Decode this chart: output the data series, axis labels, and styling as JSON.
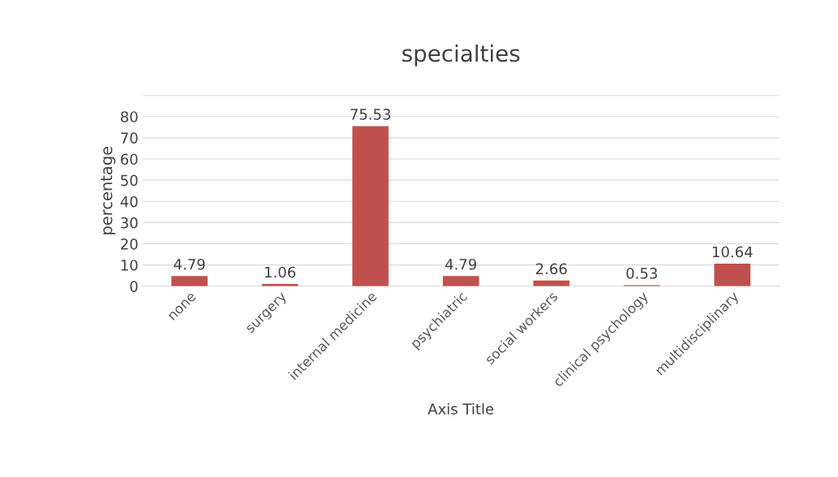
{
  "chart_data": {
    "type": "bar",
    "title": "specialties",
    "xlabel": "Axis Title",
    "ylabel": "percentage",
    "categories": [
      "none",
      "surgery",
      "internal medicine",
      "psychiatric",
      "social workers",
      "clinical psychology",
      "multidisciplinary"
    ],
    "values": [
      4.79,
      1.06,
      75.53,
      4.79,
      2.66,
      0.53,
      10.64
    ],
    "color": "#c0504d",
    "data_labels": true,
    "grid": "y",
    "ylim": [
      0,
      90
    ],
    "yticks": [
      0,
      10,
      20,
      30,
      40,
      50,
      60,
      70,
      80,
      {
        "value": 90,
        "label": null
      }
    ]
  }
}
